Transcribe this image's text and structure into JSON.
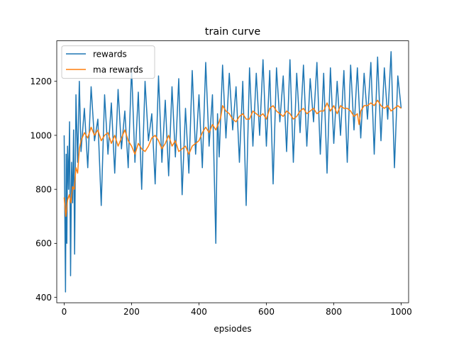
{
  "chart_data": {
    "type": "line",
    "title": "train curve",
    "xlabel": "epsiodes",
    "ylabel": "",
    "xlim": [
      -22,
      1022
    ],
    "ylim": [
      380,
      1350
    ],
    "xticks": [
      0,
      200,
      400,
      600,
      800,
      1000
    ],
    "yticks": [
      400,
      600,
      800,
      1000,
      1200
    ],
    "grid": false,
    "legend": "top-left",
    "series": [
      {
        "name": "rewards",
        "color": "#1f77b4",
        "x": [
          0,
          2,
          4,
          6,
          8,
          10,
          13,
          16,
          19,
          22,
          25,
          28,
          31,
          35,
          40,
          45,
          50,
          60,
          70,
          80,
          90,
          100,
          110,
          120,
          130,
          140,
          150,
          160,
          170,
          180,
          190,
          200,
          210,
          220,
          230,
          240,
          250,
          260,
          270,
          280,
          290,
          300,
          310,
          320,
          330,
          340,
          350,
          360,
          370,
          380,
          390,
          400,
          410,
          420,
          430,
          440,
          450,
          455,
          460,
          470,
          480,
          490,
          500,
          510,
          520,
          530,
          540,
          550,
          560,
          570,
          580,
          590,
          600,
          610,
          620,
          630,
          640,
          650,
          660,
          670,
          680,
          690,
          700,
          710,
          720,
          730,
          740,
          750,
          760,
          770,
          780,
          790,
          800,
          810,
          820,
          830,
          840,
          850,
          860,
          870,
          880,
          890,
          900,
          910,
          920,
          930,
          940,
          950,
          960,
          970,
          980,
          990,
          1000
        ],
        "values": [
          1000,
          700,
          420,
          930,
          600,
          960,
          800,
          1050,
          480,
          900,
          750,
          1020,
          560,
          1150,
          900,
          1200,
          940,
          1100,
          880,
          1180,
          980,
          1060,
          740,
          1150,
          930,
          1120,
          860,
          1170,
          950,
          1090,
          880,
          1250,
          900,
          1160,
          800,
          1200,
          980,
          1080,
          820,
          1220,
          900,
          1130,
          850,
          1180,
          920,
          1210,
          780,
          1100,
          860,
          1240,
          930,
          1150,
          880,
          1270,
          960,
          1150,
          600,
          1080,
          920,
          1260,
          990,
          1230,
          1020,
          1180,
          900,
          1200,
          740,
          1250,
          960,
          1230,
          1000,
          1280,
          960,
          1240,
          820,
          1250,
          1050,
          1220,
          940,
          1280,
          900,
          1230,
          1010,
          1260,
          960,
          1210,
          1050,
          1270,
          930,
          1230,
          860,
          1250,
          970,
          1200,
          1000,
          1240,
          900,
          1260,
          1020,
          1250,
          990,
          1230,
          1060,
          1270,
          930,
          1290,
          980,
          1250,
          1060,
          1310,
          880,
          1220,
          1100
        ]
      },
      {
        "name": "ma rewards",
        "color": "#ff7f0e",
        "x": [
          0,
          5,
          10,
          15,
          20,
          25,
          30,
          35,
          40,
          45,
          50,
          60,
          70,
          80,
          90,
          100,
          110,
          120,
          130,
          140,
          150,
          160,
          170,
          180,
          190,
          200,
          210,
          220,
          230,
          240,
          250,
          260,
          270,
          280,
          290,
          300,
          310,
          320,
          330,
          340,
          350,
          360,
          370,
          380,
          390,
          400,
          410,
          420,
          430,
          440,
          450,
          460,
          465,
          470,
          480,
          490,
          500,
          510,
          520,
          530,
          540,
          550,
          560,
          570,
          580,
          590,
          600,
          610,
          620,
          630,
          640,
          650,
          660,
          670,
          680,
          690,
          700,
          710,
          720,
          730,
          740,
          750,
          760,
          770,
          780,
          790,
          800,
          810,
          820,
          830,
          840,
          850,
          860,
          870,
          875,
          880,
          890,
          900,
          910,
          920,
          930,
          940,
          950,
          960,
          970,
          980,
          990,
          1000
        ],
        "values": [
          770,
          700,
          760,
          780,
          750,
          810,
          800,
          880,
          860,
          950,
          980,
          1010,
          990,
          1030,
          1000,
          1020,
          980,
          1000,
          1010,
          970,
          1000,
          960,
          990,
          1020,
          980,
          960,
          930,
          970,
          950,
          940,
          960,
          990,
          1000,
          980,
          950,
          970,
          1000,
          960,
          980,
          940,
          950,
          960,
          930,
          960,
          970,
          980,
          1010,
          1030,
          1010,
          1040,
          1020,
          1050,
          1070,
          1110,
          1090,
          1080,
          1060,
          1050,
          1070,
          1080,
          1060,
          1060,
          1090,
          1080,
          1070,
          1080,
          1060,
          1100,
          1110,
          1090,
          1080,
          1070,
          1090,
          1080,
          1060,
          1070,
          1090,
          1100,
          1080,
          1090,
          1100,
          1080,
          1090,
          1090,
          1120,
          1090,
          1110,
          1080,
          1110,
          1100,
          1100,
          1090,
          1070,
          1080,
          1040,
          1090,
          1110,
          1110,
          1120,
          1110,
          1130,
          1110,
          1100,
          1110,
          1090,
          1100,
          1110,
          1100
        ]
      }
    ]
  }
}
